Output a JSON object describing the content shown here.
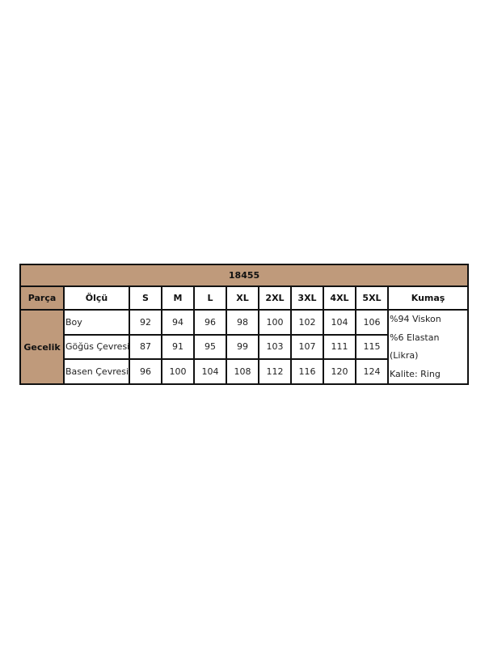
{
  "title": "18455",
  "headers": [
    "Parça",
    "Ölçü",
    "S",
    "M",
    "L",
    "XL",
    "2XL",
    "3XL",
    "4XL",
    "5XL",
    "Kumaş"
  ],
  "product": "Gecelik",
  "rows": [
    {
      "label": "Boy",
      "values": [
        "92",
        "94",
        "96",
        "98",
        "100",
        "102",
        "104",
        "106"
      ]
    },
    {
      "label": "Göğüs Çevresi",
      "values": [
        "87",
        "91",
        "95",
        "99",
        "103",
        "107",
        "111",
        "115"
      ]
    },
    {
      "label": "Basen Çevresi",
      "values": [
        "96",
        "100",
        "104",
        "108",
        "112",
        "116",
        "120",
        "124"
      ]
    }
  ],
  "fabric": [
    "%94 Viskon",
    "%6 Elastan",
    "(Likra)",
    "Kalite: Ring"
  ],
  "colors": {
    "header_bg": "#bf9a7b",
    "border": "#111111"
  }
}
